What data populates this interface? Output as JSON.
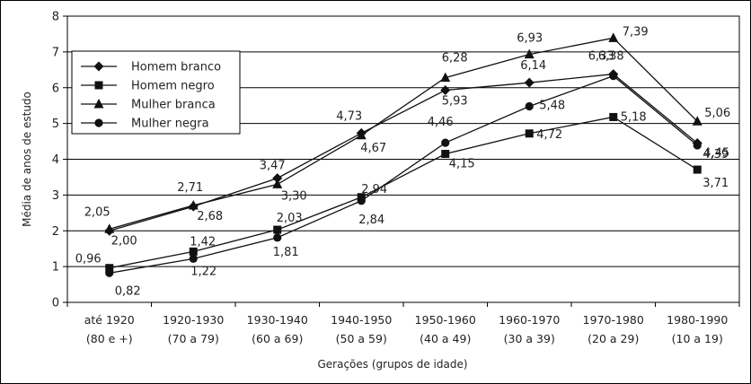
{
  "chart_data": {
    "type": "line",
    "title": "",
    "xlabel": "Gerações (grupos de idade)",
    "ylabel": "Média de anos de estudo",
    "ylim": [
      0,
      8
    ],
    "yticks": [
      "0",
      "1",
      "2",
      "3",
      "4",
      "5",
      "6",
      "7",
      "8"
    ],
    "grid": true,
    "legend_position": "top-left",
    "categories": [
      {
        "line1": "até 1920",
        "line2": "(80 e +)"
      },
      {
        "line1": "1920-1930",
        "line2": "(70 a 79)"
      },
      {
        "line1": "1930-1940",
        "line2": "(60 a 69)"
      },
      {
        "line1": "1940-1950",
        "line2": "(50 a 59)"
      },
      {
        "line1": "1950-1960",
        "line2": "(40 a 49)"
      },
      {
        "line1": "1960-1970",
        "line2": "(30 a 39)"
      },
      {
        "line1": "1970-1980",
        "line2": "(20 a 29)"
      },
      {
        "line1": "1980-1990",
        "line2": "(10 a 19)"
      }
    ],
    "series": [
      {
        "name": "Homem branco",
        "marker": "diamond",
        "values": [
          2.0,
          2.68,
          3.47,
          4.73,
          5.93,
          6.14,
          6.38,
          4.45
        ],
        "labels": [
          "2,00",
          "2,68",
          "3,47",
          "4,73",
          "5,93",
          "6,14",
          "6,38",
          "4,45"
        ]
      },
      {
        "name": "Homem negro",
        "marker": "square",
        "values": [
          0.96,
          1.42,
          2.03,
          2.94,
          4.15,
          4.72,
          5.18,
          3.71
        ],
        "labels": [
          "0,96",
          "1,42",
          "2,03",
          "2,94",
          "4,15",
          "4,72",
          "5,18",
          "3,71"
        ]
      },
      {
        "name": "Mulher branca",
        "marker": "triangle",
        "values": [
          2.05,
          2.71,
          3.3,
          4.67,
          6.28,
          6.93,
          7.39,
          5.06
        ],
        "labels": [
          "2,05",
          "2,71",
          "3,30",
          "4,67",
          "6,28",
          "6,93",
          "7,39",
          "5,06"
        ]
      },
      {
        "name": "Mulher negra",
        "marker": "circle",
        "values": [
          0.82,
          1.22,
          1.81,
          2.84,
          4.46,
          5.48,
          6.33,
          4.39
        ],
        "labels": [
          "0,82",
          "1,22",
          "1,81",
          "2,84",
          "4,46",
          "5,48",
          "6,33",
          "4,39"
        ]
      }
    ]
  }
}
